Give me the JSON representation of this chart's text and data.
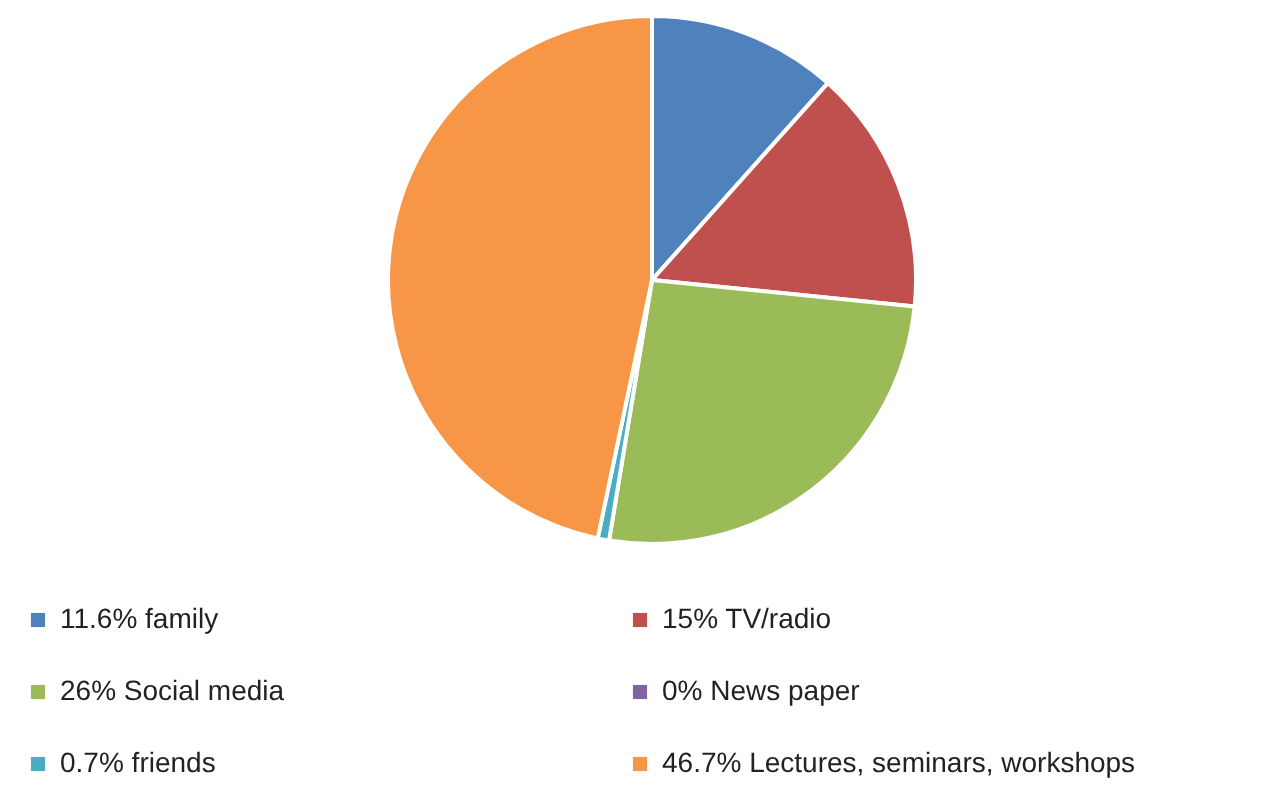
{
  "chart_data": {
    "type": "pie",
    "categories": [
      "11.6% family",
      "15% TV/radio",
      "26% Social media",
      "0% News paper",
      "0.7% friends",
      "46.7% Lectures, seminars, workshops"
    ],
    "values": [
      11.6,
      15,
      26,
      0,
      0.7,
      46.7
    ],
    "colors": [
      "#4f81bd",
      "#c0504d",
      "#9bbb59",
      "#8064a2",
      "#4bacc6",
      "#f79646"
    ],
    "legend": "bottom"
  }
}
